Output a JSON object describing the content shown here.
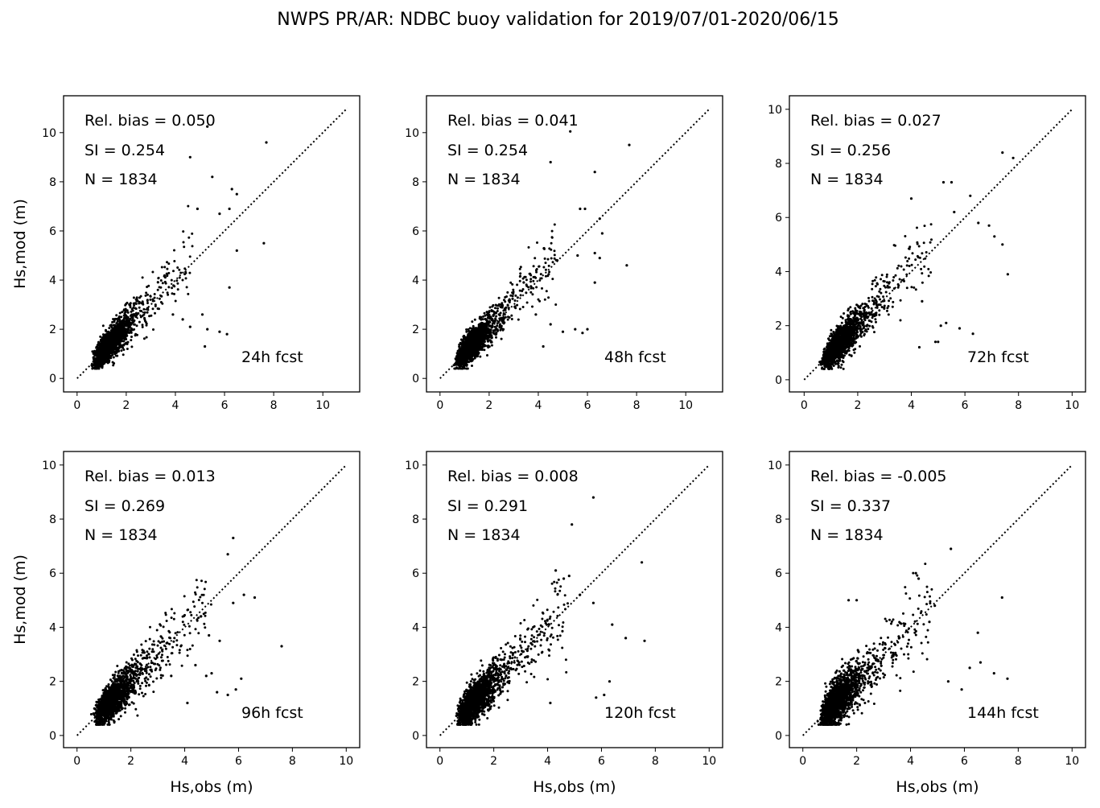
{
  "figure": {
    "title": "NWPS PR/AR: NDBC buoy validation for 2019/07/01-2020/06/15",
    "xlabel": "Hs,obs (m)",
    "ylabel": "Hs,mod (m)"
  },
  "chart_data": [
    {
      "type": "scatter",
      "xlim": [
        -0.55,
        11.5
      ],
      "ylim": [
        -0.55,
        11.5
      ],
      "xticks": [
        0,
        2,
        4,
        6,
        8,
        10
      ],
      "yticks": [
        0,
        2,
        4,
        6,
        8,
        10
      ],
      "ref_line_max": 11,
      "stats": {
        "rel_bias": "Rel. bias =  0.050",
        "si": "SI =  0.254",
        "n": "N = 1834"
      },
      "label": "24h fcst",
      "seed": 11,
      "bias": 0.05,
      "si": 0.254,
      "n": 1834,
      "outliers": [
        [
          5.3,
          10.25
        ],
        [
          7.7,
          9.6
        ],
        [
          4.6,
          9.0
        ],
        [
          5.5,
          8.2
        ],
        [
          6.3,
          7.7
        ],
        [
          6.5,
          7.5
        ],
        [
          6.2,
          6.9
        ],
        [
          4.9,
          6.9
        ],
        [
          5.8,
          6.7
        ],
        [
          7.6,
          5.5
        ],
        [
          6.5,
          5.2
        ],
        [
          6.2,
          3.7
        ],
        [
          5.3,
          2.0
        ],
        [
          5.8,
          1.9
        ],
        [
          6.1,
          1.8
        ],
        [
          5.2,
          1.3
        ],
        [
          4.6,
          2.1
        ],
        [
          3.9,
          2.6
        ],
        [
          5.1,
          2.6
        ],
        [
          4.3,
          2.4
        ]
      ]
    },
    {
      "type": "scatter",
      "xlim": [
        -0.55,
        11.5
      ],
      "ylim": [
        -0.55,
        11.5
      ],
      "xticks": [
        0,
        2,
        4,
        6,
        8,
        10
      ],
      "yticks": [
        0,
        2,
        4,
        6,
        8,
        10
      ],
      "ref_line_max": 11,
      "stats": {
        "rel_bias": "Rel. bias =  0.041",
        "si": "SI =  0.254",
        "n": "N = 1834"
      },
      "label": "48h fcst",
      "seed": 23,
      "bias": 0.041,
      "si": 0.254,
      "n": 1834,
      "outliers": [
        [
          5.3,
          10.05
        ],
        [
          7.7,
          9.5
        ],
        [
          4.5,
          8.8
        ],
        [
          6.3,
          8.4
        ],
        [
          5.7,
          6.9
        ],
        [
          5.9,
          6.9
        ],
        [
          6.5,
          6.5
        ],
        [
          6.6,
          5.9
        ],
        [
          6.3,
          5.1
        ],
        [
          5.6,
          5.0
        ],
        [
          6.5,
          4.9
        ],
        [
          7.6,
          4.6
        ],
        [
          6.3,
          3.9
        ],
        [
          5.5,
          2.0
        ],
        [
          6.0,
          2.0
        ],
        [
          5.8,
          1.85
        ],
        [
          5.0,
          1.9
        ],
        [
          4.2,
          1.3
        ],
        [
          4.5,
          2.2
        ],
        [
          3.9,
          2.6
        ]
      ]
    },
    {
      "type": "scatter",
      "xlim": [
        -0.55,
        10.5
      ],
      "ylim": [
        -0.45,
        10.5
      ],
      "xticks": [
        0,
        2,
        4,
        6,
        8,
        10
      ],
      "yticks": [
        0,
        2,
        4,
        6,
        8,
        10
      ],
      "ref_line_max": 10,
      "stats": {
        "rel_bias": "Rel. bias =  0.027",
        "si": "SI =  0.256",
        "n": "N = 1834"
      },
      "label": "72h fcst",
      "seed": 37,
      "bias": 0.027,
      "si": 0.256,
      "n": 1834,
      "outliers": [
        [
          7.4,
          8.4
        ],
        [
          7.8,
          8.2
        ],
        [
          5.2,
          7.3
        ],
        [
          5.5,
          7.3
        ],
        [
          4.0,
          6.7
        ],
        [
          6.2,
          6.8
        ],
        [
          5.6,
          6.2
        ],
        [
          6.5,
          5.8
        ],
        [
          6.9,
          5.7
        ],
        [
          7.1,
          5.3
        ],
        [
          7.4,
          5.0
        ],
        [
          7.6,
          3.9
        ],
        [
          5.1,
          2.0
        ],
        [
          4.3,
          1.2
        ],
        [
          4.9,
          1.4
        ],
        [
          5.3,
          2.1
        ],
        [
          5.8,
          1.9
        ],
        [
          6.3,
          1.7
        ],
        [
          5.0,
          1.4
        ],
        [
          4.4,
          2.9
        ]
      ]
    },
    {
      "type": "scatter",
      "xlim": [
        -0.5,
        10.5
      ],
      "ylim": [
        -0.45,
        10.5
      ],
      "xticks": [
        0,
        2,
        4,
        6,
        8,
        10
      ],
      "yticks": [
        0,
        2,
        4,
        6,
        8,
        10
      ],
      "ref_line_max": 10,
      "stats": {
        "rel_bias": "Rel. bias =  0.013",
        "si": "SI =  0.269",
        "n": "N = 1834"
      },
      "label": "96h fcst",
      "seed": 41,
      "bias": 0.013,
      "si": 0.269,
      "n": 1834,
      "outliers": [
        [
          5.8,
          7.3
        ],
        [
          5.6,
          6.7
        ],
        [
          6.2,
          5.2
        ],
        [
          6.6,
          5.1
        ],
        [
          5.8,
          4.9
        ],
        [
          7.6,
          3.3
        ],
        [
          4.1,
          1.2
        ],
        [
          5.6,
          1.5
        ],
        [
          5.9,
          1.7
        ],
        [
          6.1,
          2.1
        ],
        [
          5.2,
          1.6
        ],
        [
          4.8,
          2.2
        ],
        [
          5.3,
          3.5
        ],
        [
          4.6,
          4.4
        ],
        [
          4.9,
          3.7
        ],
        [
          4.4,
          2.6
        ],
        [
          5.0,
          2.3
        ],
        [
          3.5,
          2.2
        ]
      ]
    },
    {
      "type": "scatter",
      "xlim": [
        -0.5,
        10.5
      ],
      "ylim": [
        -0.45,
        10.5
      ],
      "xticks": [
        0,
        2,
        4,
        6,
        8,
        10
      ],
      "yticks": [
        0,
        2,
        4,
        6,
        8,
        10
      ],
      "ref_line_max": 10,
      "stats": {
        "rel_bias": "Rel. bias =  0.008",
        "si": "SI =  0.291",
        "n": "N = 1834"
      },
      "label": "120h fcst",
      "seed": 53,
      "bias": 0.008,
      "si": 0.291,
      "n": 1834,
      "outliers": [
        [
          5.7,
          8.8
        ],
        [
          4.9,
          7.8
        ],
        [
          7.5,
          6.4
        ],
        [
          4.6,
          5.8
        ],
        [
          4.8,
          5.9
        ],
        [
          4.3,
          6.1
        ],
        [
          5.2,
          5.2
        ],
        [
          5.7,
          4.9
        ],
        [
          7.6,
          3.5
        ],
        [
          6.3,
          2.0
        ],
        [
          6.1,
          1.5
        ],
        [
          5.8,
          1.4
        ],
        [
          4.1,
          1.2
        ],
        [
          6.9,
          3.6
        ],
        [
          6.4,
          4.1
        ]
      ]
    },
    {
      "type": "scatter",
      "xlim": [
        -0.5,
        10.5
      ],
      "ylim": [
        -0.45,
        10.5
      ],
      "xticks": [
        0,
        2,
        4,
        6,
        8,
        10
      ],
      "yticks": [
        0,
        2,
        4,
        6,
        8,
        10
      ],
      "ref_line_max": 10,
      "stats": {
        "rel_bias": "Rel. bias = -0.005",
        "si": "SI =  0.337",
        "n": "N = 1834"
      },
      "label": "144h fcst",
      "seed": 67,
      "bias": -0.005,
      "si": 0.337,
      "n": 1834,
      "outliers": [
        [
          5.5,
          6.9
        ],
        [
          4.2,
          6.0
        ],
        [
          4.3,
          5.8
        ],
        [
          7.4,
          5.1
        ],
        [
          7.6,
          2.1
        ],
        [
          6.5,
          3.8
        ],
        [
          6.6,
          2.7
        ],
        [
          7.1,
          2.3
        ],
        [
          5.4,
          2.0
        ],
        [
          5.9,
          1.7
        ],
        [
          6.2,
          2.5
        ],
        [
          4.7,
          4.2
        ],
        [
          4.9,
          4.8
        ],
        [
          2.0,
          5.0
        ],
        [
          1.7,
          5.0
        ]
      ]
    }
  ]
}
